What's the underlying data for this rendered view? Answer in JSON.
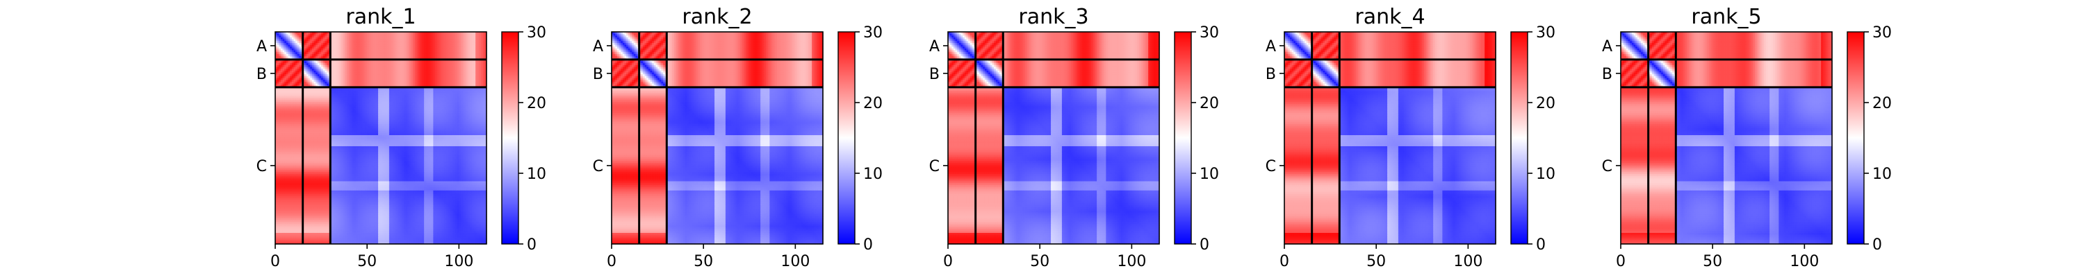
{
  "chart_data": {
    "type": "heatmap",
    "colormap": "bwr",
    "colormap_colors": [
      "#0000ff",
      "#ffffff",
      "#ff0000"
    ],
    "color_range": [
      0,
      30
    ],
    "colorbar_ticks": [
      "0",
      "10",
      "20",
      "30"
    ],
    "xlim": [
      0,
      115
    ],
    "x_ticks": [
      "0",
      "50",
      "100"
    ],
    "y_ticks": [
      "A",
      "B",
      "C"
    ],
    "chain_boundaries": [
      15,
      30
    ],
    "chains": [
      {
        "name": "A",
        "start": 0,
        "end": 15
      },
      {
        "name": "B",
        "start": 15,
        "end": 30
      },
      {
        "name": "C",
        "start": 30,
        "end": 115
      }
    ],
    "panels": [
      {
        "title": "rank_1"
      },
      {
        "title": "rank_2"
      },
      {
        "title": "rank_3"
      },
      {
        "title": "rank_4"
      },
      {
        "title": "rank_5"
      }
    ]
  }
}
